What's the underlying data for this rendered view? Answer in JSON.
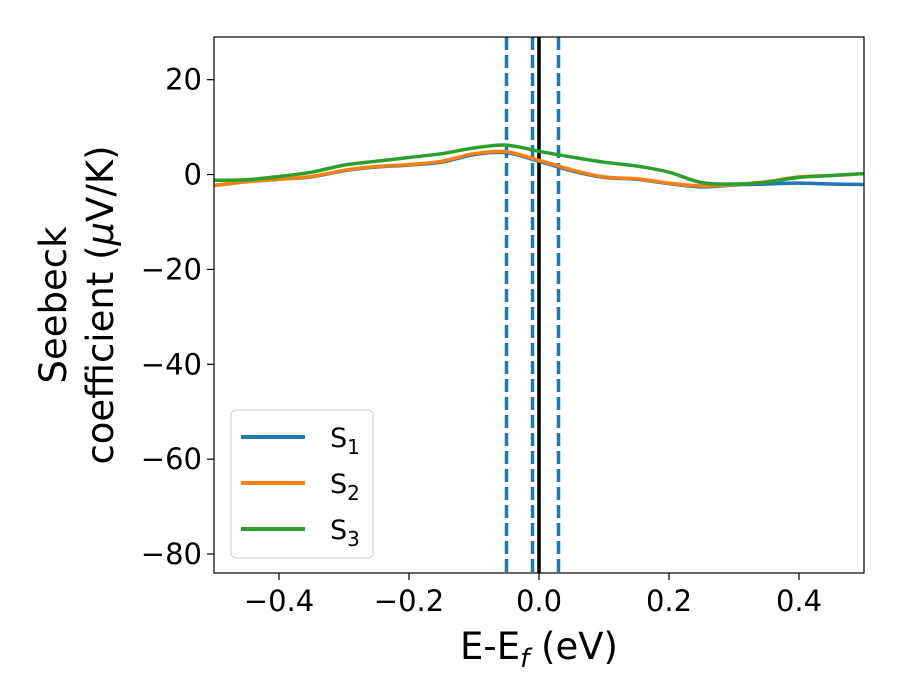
{
  "chart_data": {
    "type": "line",
    "xlabel": {
      "main": "E-E",
      "sub": "f",
      "unit": " (eV)"
    },
    "ylabel": {
      "line1": "Seebeck",
      "line2a": "coefficient  (",
      "mu": "μ",
      "line2b": "V/K)"
    },
    "xlim": [
      -0.5,
      0.5
    ],
    "ylim": [
      -84,
      29
    ],
    "xticks": [
      -0.4,
      -0.2,
      0.0,
      0.2,
      0.4
    ],
    "xtick_labels": [
      "−0.4",
      "−0.2",
      "0.0",
      "0.2",
      "0.4"
    ],
    "yticks": [
      20,
      0,
      -20,
      -40,
      -60,
      -80
    ],
    "ytick_labels": [
      "20",
      "0",
      "−20",
      "−40",
      "−60",
      "−80"
    ],
    "legend_position": "lower-left",
    "vertical_lines": [
      {
        "x": 0.0,
        "style": "solid",
        "color": "#000000"
      },
      {
        "x": -0.05,
        "style": "dashed",
        "color": "#1f77b4"
      },
      {
        "x": -0.01,
        "style": "dashed",
        "color": "#1f77b4"
      },
      {
        "x": 0.03,
        "style": "dashed",
        "color": "#1f77b4"
      }
    ],
    "series": [
      {
        "name": "S",
        "sub": "1",
        "color": "#1f77b4",
        "x": [
          -0.5,
          -0.45,
          -0.4,
          -0.35,
          -0.3,
          -0.25,
          -0.2,
          -0.15,
          -0.1,
          -0.05,
          0.0,
          0.05,
          0.1,
          0.15,
          0.2,
          0.25,
          0.3,
          0.35,
          0.4,
          0.45,
          0.5
        ],
        "y": [
          -2.3,
          -1.5,
          -1.0,
          -0.5,
          0.8,
          1.6,
          2.0,
          2.6,
          4.2,
          4.6,
          2.8,
          0.8,
          -0.6,
          -1.0,
          -1.9,
          -2.6,
          -2.2,
          -2.0,
          -1.8,
          -2.0,
          -2.1
        ]
      },
      {
        "name": "S",
        "sub": "2",
        "color": "#ff7f0e",
        "x": [
          -0.5,
          -0.45,
          -0.4,
          -0.35,
          -0.3,
          -0.25,
          -0.2,
          -0.15,
          -0.1,
          -0.05,
          0.0,
          0.05,
          0.1,
          0.15,
          0.2,
          0.25,
          0.3,
          0.35,
          0.4,
          0.45,
          0.5
        ],
        "y": [
          -2.3,
          -1.5,
          -1.0,
          -0.4,
          0.9,
          1.7,
          2.1,
          2.8,
          4.4,
          4.8,
          3.0,
          1.0,
          -0.5,
          -0.9,
          -1.8,
          -2.4,
          -2.1,
          -1.5,
          -0.5,
          -0.2,
          0.2
        ]
      },
      {
        "name": "S",
        "sub": "3",
        "color": "#2ca02c",
        "x": [
          -0.5,
          -0.45,
          -0.4,
          -0.35,
          -0.3,
          -0.25,
          -0.2,
          -0.15,
          -0.1,
          -0.05,
          0.0,
          0.05,
          0.1,
          0.15,
          0.2,
          0.25,
          0.3,
          0.35,
          0.4,
          0.45,
          0.5
        ],
        "y": [
          -1.2,
          -1.1,
          -0.4,
          0.5,
          2.0,
          2.8,
          3.6,
          4.4,
          5.6,
          6.2,
          4.9,
          3.7,
          2.6,
          1.8,
          0.5,
          -1.7,
          -2.0,
          -1.6,
          -0.6,
          -0.2,
          0.2
        ]
      }
    ]
  }
}
